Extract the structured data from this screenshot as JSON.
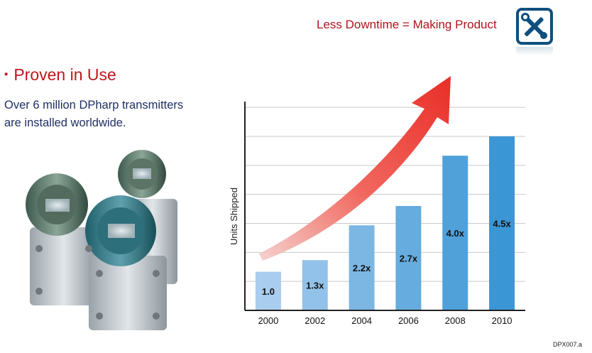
{
  "header": {
    "tagline": "Less Downtime = Making Product",
    "badge_icon": "wrench-screwdriver-icon"
  },
  "heading": {
    "bullet": "▪",
    "title": "Proven in Use"
  },
  "body": {
    "line1": "Over 6 million DPharp transmitters",
    "line2": "are installed worldwide."
  },
  "photo": {
    "icon": "pressure-transmitters-photo"
  },
  "footer": {
    "code": "DPX007.a"
  },
  "colors": {
    "accent_red": "#c0161d",
    "navy": "#1f2f63",
    "bar_light": "#a8cdee",
    "bar_dark": "#3a96d4"
  },
  "chart_data": {
    "type": "bar",
    "ylabel": "Units Shipped",
    "xlabel": "",
    "title": "",
    "categories": [
      "2000",
      "2002",
      "2004",
      "2006",
      "2008",
      "2010"
    ],
    "values": [
      1.0,
      1.3,
      2.2,
      2.7,
      4.0,
      4.5
    ],
    "value_labels": [
      "1.0",
      "1.3x",
      "2.2x",
      "2.7x",
      "4.0x",
      "4.5x"
    ],
    "ylim": [
      0,
      5.4
    ],
    "grid": true,
    "annotation": "red-growth-arrow"
  }
}
